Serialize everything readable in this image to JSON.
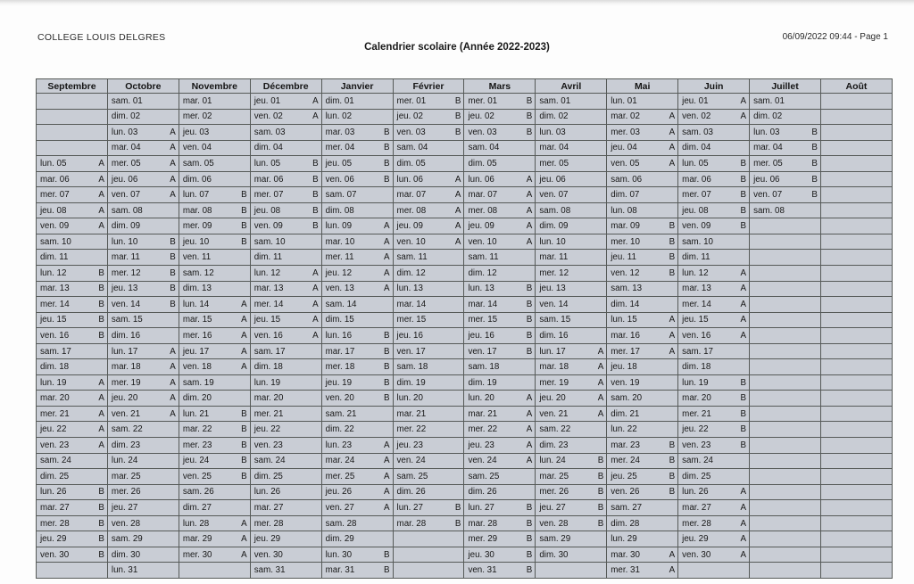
{
  "header": {
    "school": "COLLEGE LOUIS DELGRES",
    "title": "Calendrier scolaire (Année 2022-2023)",
    "meta": "06/09/2022 09:44 - Page 1"
  },
  "colors": {
    "week_a": "#fbc64b",
    "week_b": "#a9d6f2",
    "neutral": "#c9cdd5"
  },
  "calendar": {
    "row_count": 31,
    "months": [
      {
        "name": "Septembre",
        "days": [
          "",
          "",
          "",
          "",
          "lun. 05|A",
          "mar. 06|A",
          "mer. 07|A",
          "jeu. 08|A",
          "ven. 09|A",
          "sam. 10|",
          "dim. 11|",
          "lun. 12|B",
          "mar. 13|B",
          "mer. 14|B",
          "jeu. 15|B",
          "ven. 16|B",
          "sam. 17|",
          "dim. 18|",
          "lun. 19|A",
          "mar. 20|A",
          "mer. 21|A",
          "jeu. 22|A",
          "ven. 23|A",
          "sam. 24|",
          "dim. 25|",
          "lun. 26|B",
          "mar. 27|B",
          "mer. 28|B",
          "jeu. 29|B",
          "ven. 30|B",
          ""
        ]
      },
      {
        "name": "Octobre",
        "days": [
          "sam. 01|",
          "dim. 02|",
          "lun. 03|A",
          "mar. 04|A",
          "mer. 05|A",
          "jeu. 06|A",
          "ven. 07|A",
          "sam. 08|",
          "dim. 09|",
          "lun. 10|B",
          "mar. 11|B",
          "mer. 12|B",
          "jeu. 13|B",
          "ven. 14|B",
          "sam. 15|",
          "dim. 16|",
          "lun. 17|A",
          "mar. 18|A",
          "mer. 19|A",
          "jeu. 20|A",
          "ven. 21|A",
          "sam. 22|",
          "dim. 23|",
          "lun. 24|",
          "mar. 25|",
          "mer. 26|",
          "jeu. 27|",
          "ven. 28|",
          "sam. 29|",
          "dim. 30|",
          "lun. 31|"
        ]
      },
      {
        "name": "Novembre",
        "days": [
          "mar. 01|",
          "mer. 02|",
          "jeu. 03|",
          "ven. 04|",
          "sam. 05|",
          "dim. 06|",
          "lun. 07|B",
          "mar. 08|B",
          "mer. 09|B",
          "jeu. 10|B",
          "ven. 11|",
          "sam. 12|",
          "dim. 13|",
          "lun. 14|A",
          "mar. 15|A",
          "mer. 16|A",
          "jeu. 17|A",
          "ven. 18|A",
          "sam. 19|",
          "dim. 20|",
          "lun. 21|B",
          "mar. 22|B",
          "mer. 23|B",
          "jeu. 24|B",
          "ven. 25|B",
          "sam. 26|",
          "dim. 27|",
          "lun. 28|A",
          "mar. 29|A",
          "mer. 30|A",
          ""
        ]
      },
      {
        "name": "Décembre",
        "days": [
          "jeu. 01|A",
          "ven. 02|A",
          "sam. 03|",
          "dim. 04|",
          "lun. 05|B",
          "mar. 06|B",
          "mer. 07|B",
          "jeu. 08|B",
          "ven. 09|B",
          "sam. 10|",
          "dim. 11|",
          "lun. 12|A",
          "mar. 13|A",
          "mer. 14|A",
          "jeu. 15|A",
          "ven. 16|A",
          "sam. 17|",
          "dim. 18|",
          "lun. 19|",
          "mar. 20|",
          "mer. 21|",
          "jeu. 22|",
          "ven. 23|",
          "sam. 24|",
          "dim. 25|",
          "lun. 26|",
          "mar. 27|",
          "mer. 28|",
          "jeu. 29|",
          "ven. 30|",
          "sam. 31|"
        ]
      },
      {
        "name": "Janvier",
        "days": [
          "dim. 01|",
          "lun. 02|",
          "mar. 03|B",
          "mer. 04|B",
          "jeu. 05|B",
          "ven. 06|B",
          "sam. 07|",
          "dim. 08|",
          "lun. 09|A",
          "mar. 10|A",
          "mer. 11|A",
          "jeu. 12|A",
          "ven. 13|A",
          "sam. 14|",
          "dim. 15|",
          "lun. 16|B",
          "mar. 17|B",
          "mer. 18|B",
          "jeu. 19|B",
          "ven. 20|B",
          "sam. 21|",
          "dim. 22|",
          "lun. 23|A",
          "mar. 24|A",
          "mer. 25|A",
          "jeu. 26|A",
          "ven. 27|A",
          "sam. 28|",
          "dim. 29|",
          "lun. 30|B",
          "mar. 31|B"
        ]
      },
      {
        "name": "Février",
        "days": [
          "mer. 01|B",
          "jeu. 02|B",
          "ven. 03|B",
          "sam. 04|",
          "dim. 05|",
          "lun. 06|A",
          "mar. 07|A",
          "mer. 08|A",
          "jeu. 09|A",
          "ven. 10|A",
          "sam. 11|",
          "dim. 12|",
          "lun. 13|",
          "mar. 14|",
          "mer. 15|",
          "jeu. 16|",
          "ven. 17|",
          "sam. 18|",
          "dim. 19|",
          "lun. 20|",
          "mar. 21|",
          "mer. 22|",
          "jeu. 23|",
          "ven. 24|",
          "sam. 25|",
          "dim. 26|",
          "lun. 27|B",
          "mar. 28|B",
          "",
          "",
          ""
        ]
      },
      {
        "name": "Mars",
        "days": [
          "mer. 01|B",
          "jeu. 02|B",
          "ven. 03|B",
          "sam. 04|",
          "dim. 05|",
          "lun. 06|A",
          "mar. 07|A",
          "mer. 08|A",
          "jeu. 09|A",
          "ven. 10|A",
          "sam. 11|",
          "dim. 12|",
          "lun. 13|B",
          "mar. 14|B",
          "mer. 15|B",
          "jeu. 16|B",
          "ven. 17|B",
          "sam. 18|",
          "dim. 19|",
          "lun. 20|A",
          "mar. 21|A",
          "mer. 22|A",
          "jeu. 23|A",
          "ven. 24|A",
          "sam. 25|",
          "dim. 26|",
          "lun. 27|B",
          "mar. 28|B",
          "mer. 29|B",
          "jeu. 30|B",
          "ven. 31|B"
        ]
      },
      {
        "name": "Avril",
        "days": [
          "sam. 01|",
          "dim. 02|",
          "lun. 03|",
          "mar. 04|",
          "mer. 05|",
          "jeu. 06|",
          "ven. 07|",
          "sam. 08|",
          "dim. 09|",
          "lun. 10|",
          "mar. 11|",
          "mer. 12|",
          "jeu. 13|",
          "ven. 14|",
          "sam. 15|",
          "dim. 16|",
          "lun. 17|A",
          "mar. 18|A",
          "mer. 19|A",
          "jeu. 20|A",
          "ven. 21|A",
          "sam. 22|",
          "dim. 23|",
          "lun. 24|B",
          "mar. 25|B",
          "mer. 26|B",
          "jeu. 27|B",
          "ven. 28|B",
          "sam. 29|",
          "dim. 30|",
          ""
        ]
      },
      {
        "name": "Mai",
        "days": [
          "lun. 01|",
          "mar. 02|A",
          "mer. 03|A",
          "jeu. 04|A",
          "ven. 05|A",
          "sam. 06|",
          "dim. 07|",
          "lun. 08|",
          "mar. 09|B",
          "mer. 10|B",
          "jeu. 11|B",
          "ven. 12|B",
          "sam. 13|",
          "dim. 14|",
          "lun. 15|A",
          "mar. 16|A",
          "mer. 17|A",
          "jeu. 18|",
          "ven. 19|",
          "sam. 20|",
          "dim. 21|",
          "lun. 22|",
          "mar. 23|B",
          "mer. 24|B",
          "jeu. 25|B",
          "ven. 26|B",
          "sam. 27|",
          "dim. 28|",
          "lun. 29|",
          "mar. 30|A",
          "mer. 31|A"
        ]
      },
      {
        "name": "Juin",
        "days": [
          "jeu. 01|A",
          "ven. 02|A",
          "sam. 03|",
          "dim. 04|",
          "lun. 05|B",
          "mar. 06|B",
          "mer. 07|B",
          "jeu. 08|B",
          "ven. 09|B",
          "sam. 10|",
          "dim. 11|",
          "lun. 12|A",
          "mar. 13|A",
          "mer. 14|A",
          "jeu. 15|A",
          "ven. 16|A",
          "sam. 17|",
          "dim. 18|",
          "lun. 19|B",
          "mar. 20|B",
          "mer. 21|B",
          "jeu. 22|B",
          "ven. 23|B",
          "sam. 24|",
          "dim. 25|",
          "lun. 26|A",
          "mar. 27|A",
          "mer. 28|A",
          "jeu. 29|A",
          "ven. 30|A",
          ""
        ]
      },
      {
        "name": "Juillet",
        "days": [
          "sam. 01|",
          "dim. 02|",
          "lun. 03|B",
          "mar. 04|B",
          "mer. 05|B",
          "jeu. 06|B",
          "ven. 07|B",
          "sam. 08|",
          "",
          "",
          "",
          "",
          "",
          "",
          "",
          "",
          "",
          "",
          "",
          "",
          "",
          "",
          "",
          "",
          "",
          "",
          "",
          "",
          "",
          "",
          ""
        ]
      },
      {
        "name": "Août",
        "days": [
          "",
          "",
          "",
          "",
          "",
          "",
          "",
          "",
          "",
          "",
          "",
          "",
          "",
          "",
          "",
          "",
          "",
          "",
          "",
          "",
          "",
          "",
          "",
          "",
          "",
          "",
          "",
          "",
          "",
          "",
          ""
        ]
      }
    ]
  }
}
